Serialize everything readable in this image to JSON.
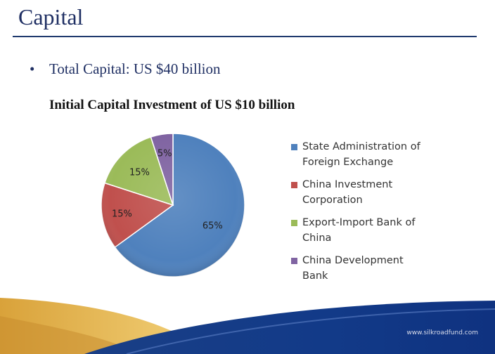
{
  "slide": {
    "title": "Capital",
    "bullet_symbol": "•",
    "bullet_text": "Total Capital: US $40 billion",
    "footer_url": "www.silkroadfund.com"
  },
  "chart_data": {
    "type": "pie",
    "title": "Initial Capital Investment of US $10 billion",
    "categories": [
      "State Administration of Foreign Exchange",
      "China Investment Corporation",
      "Export-Import Bank of China",
      "China Development Bank"
    ],
    "values": [
      65,
      15,
      15,
      5
    ],
    "labels": [
      "65%",
      "15%",
      "15%",
      "5%"
    ],
    "colors": [
      "#4f81bd",
      "#c0504d",
      "#9bbb59",
      "#8064a2"
    ],
    "legend_text": [
      "State Administration of\nForeign Exchange",
      "China Investment\nCorporation",
      "Export-Import Bank of\nChina",
      "China Development\nBank"
    ],
    "legend": "right"
  }
}
